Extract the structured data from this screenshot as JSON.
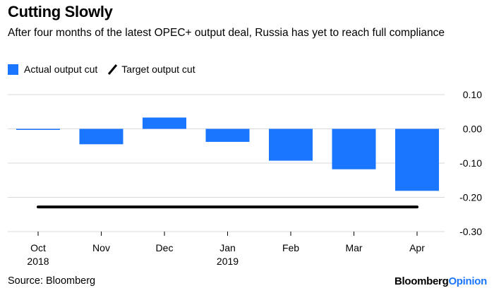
{
  "header": {
    "title": "Cutting Slowly",
    "subtitle": "After four months of the latest OPEC+ output deal, Russia has yet to reach full compliance"
  },
  "legend": {
    "actual_label": "Actual output cut",
    "target_label": "Target output cut"
  },
  "footer": {
    "source": "Source: Bloomberg",
    "brand_main": "Bloomberg",
    "brand_accent": "Opinion"
  },
  "colors": {
    "bar": "#1a75ff",
    "target_line": "#000000",
    "grid": "#d9d9d9"
  },
  "chart_data": {
    "type": "bar",
    "categories": [
      "Oct",
      "Nov",
      "Dec",
      "Jan",
      "Feb",
      "Mar",
      "Apr"
    ],
    "category_sublabels": [
      "2018",
      "",
      "",
      "2019",
      "",
      "",
      ""
    ],
    "series": [
      {
        "name": "Actual output cut",
        "values": [
          -0.002,
          -0.045,
          0.033,
          -0.038,
          -0.093,
          -0.118,
          -0.181
        ]
      },
      {
        "name": "Target output cut",
        "type": "line",
        "values": [
          -0.228,
          -0.228,
          -0.228,
          -0.228,
          -0.228,
          -0.228,
          -0.228
        ]
      }
    ],
    "y_ticks": [
      0.1,
      0.0,
      -0.1,
      -0.2,
      -0.3
    ],
    "y_tick_labels": [
      "0.10",
      "0.00",
      "-0.10",
      "-0.20",
      "-0.30"
    ],
    "ylim": [
      -0.3,
      0.1
    ],
    "y_axis_side": "right",
    "grid": true
  }
}
